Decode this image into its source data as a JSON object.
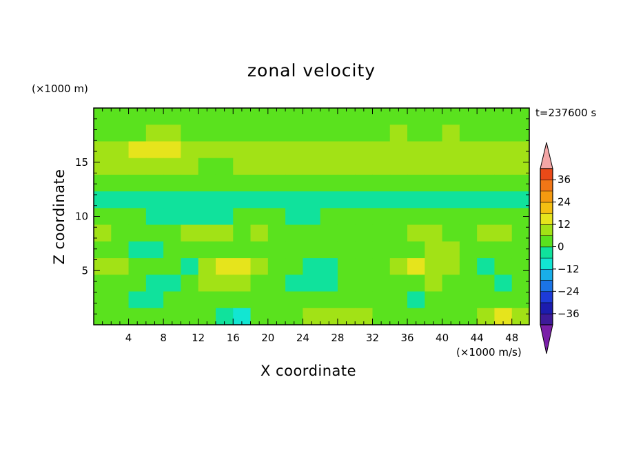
{
  "chart_data": {
    "type": "heatmap",
    "title": "zonal velocity",
    "xlabel": "X coordinate",
    "ylabel": "Z coordinate",
    "x_unit": "(×1000 m/s)",
    "z_unit": "(×1000 m)",
    "timestamp": "t=237600 s",
    "xlim": [
      0,
      50
    ],
    "ylim": [
      0,
      20
    ],
    "x_ticks": [
      "4",
      "8",
      "12",
      "16",
      "20",
      "24",
      "28",
      "32",
      "36",
      "40",
      "44",
      "48"
    ],
    "y_ticks": [
      "5",
      "10",
      "15"
    ],
    "colorbar": {
      "min": -42,
      "max": 42,
      "step": 6,
      "tick_labels": [
        "36",
        "24",
        "12",
        "0",
        "−12",
        "−24",
        "−36"
      ],
      "extend": "both",
      "colors": [
        "#7a1fa8",
        "#3d1a99",
        "#1c1cae",
        "#1d3bd8",
        "#1b74e6",
        "#19aee8",
        "#12e6d2",
        "#10e29c",
        "#5ae21e",
        "#a2e216",
        "#e6e41c",
        "#f4bf12",
        "#f49a10",
        "#f07616",
        "#ea4a18",
        "#e2221c",
        "#f4a6a6"
      ]
    },
    "field": [
      [
        "0",
        "0",
        "0",
        "0",
        "0",
        "0",
        "0",
        "0",
        "0",
        "0",
        "0",
        "0",
        "0",
        "0",
        "0",
        "0",
        "0",
        "0",
        "0",
        "0",
        "0",
        "0",
        "0",
        "0",
        "0"
      ],
      [
        "0",
        "0",
        "0",
        "6",
        "6",
        "0",
        "0",
        "0",
        "0",
        "0",
        "0",
        "0",
        "0",
        "0",
        "0",
        "0",
        "0",
        "6",
        "0",
        "0",
        "6",
        "0",
        "0",
        "0",
        "0"
      ],
      [
        "6",
        "6",
        "12",
        "12",
        "12",
        "6",
        "6",
        "6",
        "6",
        "6",
        "6",
        "6",
        "6",
        "6",
        "6",
        "6",
        "6",
        "6",
        "6",
        "6",
        "6",
        "6",
        "6",
        "6",
        "6"
      ],
      [
        "6",
        "6",
        "6",
        "6",
        "6",
        "6",
        "0",
        "0",
        "6",
        "6",
        "6",
        "6",
        "6",
        "6",
        "6",
        "6",
        "6",
        "6",
        "6",
        "6",
        "6",
        "6",
        "6",
        "6",
        "6"
      ],
      [
        "0",
        "0",
        "0",
        "0",
        "0",
        "0",
        "0",
        "0",
        "0",
        "0",
        "0",
        "0",
        "0",
        "0",
        "0",
        "0",
        "0",
        "0",
        "0",
        "0",
        "0",
        "0",
        "0",
        "0",
        "0"
      ],
      [
        "-6",
        "-6",
        "-6",
        "-6",
        "-6",
        "-6",
        "-6",
        "-6",
        "-6",
        "-6",
        "-6",
        "-6",
        "-6",
        "-6",
        "-6",
        "-6",
        "-6",
        "-6",
        "-6",
        "-6",
        "-6",
        "-6",
        "-6",
        "-6",
        "-6"
      ],
      [
        "0",
        "0",
        "0",
        "-6",
        "-6",
        "-6",
        "-6",
        "-6",
        "0",
        "0",
        "0",
        "-6",
        "-6",
        "0",
        "0",
        "0",
        "0",
        "0",
        "0",
        "0",
        "0",
        "0",
        "0",
        "0",
        "0"
      ],
      [
        "6",
        "0",
        "0",
        "0",
        "0",
        "6",
        "6",
        "6",
        "0",
        "6",
        "0",
        "0",
        "0",
        "0",
        "0",
        "0",
        "0",
        "0",
        "6",
        "6",
        "0",
        "0",
        "6",
        "6",
        "0"
      ],
      [
        "0",
        "0",
        "-6",
        "-6",
        "0",
        "0",
        "0",
        "0",
        "0",
        "0",
        "0",
        "0",
        "0",
        "0",
        "0",
        "0",
        "0",
        "0",
        "0",
        "6",
        "6",
        "0",
        "0",
        "0",
        "0"
      ],
      [
        "6",
        "6",
        "0",
        "0",
        "0",
        "-6",
        "6",
        "12",
        "12",
        "6",
        "0",
        "0",
        "-6",
        "-6",
        "0",
        "0",
        "0",
        "6",
        "12",
        "6",
        "6",
        "0",
        "-6",
        "0",
        "0"
      ],
      [
        "0",
        "0",
        "0",
        "-6",
        "-6",
        "0",
        "6",
        "6",
        "6",
        "0",
        "0",
        "-6",
        "-6",
        "-6",
        "0",
        "0",
        "0",
        "0",
        "0",
        "6",
        "0",
        "0",
        "0",
        "-6",
        "0"
      ],
      [
        "0",
        "0",
        "-6",
        "-6",
        "0",
        "0",
        "0",
        "0",
        "0",
        "0",
        "0",
        "0",
        "0",
        "0",
        "0",
        "0",
        "0",
        "0",
        "-6",
        "0",
        "0",
        "0",
        "0",
        "0",
        "0"
      ],
      [
        "0",
        "0",
        "0",
        "0",
        "0",
        "0",
        "0",
        "-6",
        "-12",
        "0",
        "0",
        "0",
        "6",
        "6",
        "6",
        "6",
        "0",
        "0",
        "0",
        "0",
        "0",
        "0",
        "6",
        "12",
        "6"
      ]
    ]
  }
}
